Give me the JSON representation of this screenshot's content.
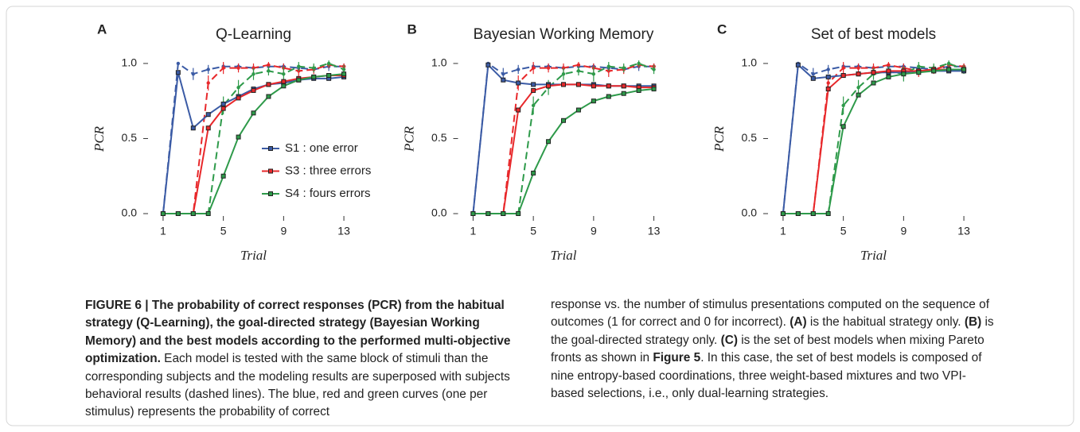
{
  "chart_data": [
    {
      "type": "line",
      "panel_label": "A",
      "title": "Q-Learning",
      "xlabel": "Trial",
      "ylabel": "PCR",
      "x": [
        1,
        2,
        3,
        4,
        5,
        6,
        7,
        8,
        9,
        10,
        11,
        12,
        13
      ],
      "xlim": [
        0,
        14
      ],
      "ylim": [
        0,
        1.1
      ],
      "xticks": [
        1,
        5,
        9,
        13
      ],
      "yticks": [
        {
          "value": 0,
          "label": "0.0"
        },
        0.5,
        {
          "value": 1,
          "label": "1.0"
        }
      ],
      "legend": "lower right",
      "series": [
        {
          "name": "S1 : one error",
          "color": "#3b5ba5",
          "values": [
            0,
            0.94,
            0.57,
            0.66,
            0.73,
            0.78,
            0.83,
            0.86,
            0.87,
            0.89,
            0.9,
            0.9,
            0.91
          ]
        },
        {
          "name": "S3 : three errors",
          "color": "#e8282b",
          "values": [
            0,
            0,
            0,
            0.57,
            0.7,
            0.77,
            0.82,
            0.86,
            0.88,
            0.9,
            0.91,
            0.92,
            0.92
          ]
        },
        {
          "name": "S4 : fours errors",
          "color": "#2e9a4a",
          "values": [
            0,
            0,
            0,
            0,
            0.25,
            0.51,
            0.67,
            0.78,
            0.85,
            0.89,
            0.91,
            0.92,
            0.93
          ]
        },
        {
          "color": "#3b5ba5",
          "dashed": true,
          "values": [
            0,
            1,
            0.93,
            0.96,
            0.98,
            0.98,
            0.97,
            0.98,
            0.98,
            0.97,
            0.96,
            0.98,
            0.98
          ],
          "errors": [
            0,
            0,
            0.04,
            0.03,
            0.02,
            0.02,
            0.02,
            0.02,
            0.02,
            0.02,
            0.02,
            0.03,
            0.02
          ]
        },
        {
          "color": "#e8282b",
          "dashed": true,
          "values": [
            0,
            0,
            0,
            0.87,
            0.97,
            0.97,
            0.97,
            0.99,
            0.97,
            0.95,
            0.96,
            0.99,
            0.98
          ],
          "errors": [
            0,
            0,
            0,
            0.05,
            0.04,
            0.03,
            0.03,
            0.02,
            0.03,
            0.04,
            0.03,
            0.02,
            0.02
          ]
        },
        {
          "color": "#2e9a4a",
          "dashed": true,
          "values": [
            0,
            0,
            0,
            0,
            0.72,
            0.84,
            0.93,
            0.95,
            0.93,
            0.98,
            0.97,
            1,
            0.96
          ],
          "errors": [
            0,
            0,
            0,
            0,
            0.06,
            0.05,
            0.04,
            0.03,
            0.05,
            0.03,
            0.03,
            0.02,
            0.03
          ]
        }
      ]
    },
    {
      "type": "line",
      "panel_label": "B",
      "title": "Bayesian Working Memory",
      "xlabel": "Trial",
      "ylabel": "PCR",
      "x": [
        1,
        2,
        3,
        4,
        5,
        6,
        7,
        8,
        9,
        10,
        11,
        12,
        13
      ],
      "xlim": [
        0,
        14
      ],
      "ylim": [
        0,
        1.1
      ],
      "xticks": [
        1,
        5,
        9,
        13
      ],
      "yticks": [
        {
          "value": 0,
          "label": "0.0"
        },
        0.5,
        {
          "value": 1,
          "label": "1.0"
        }
      ],
      "series": [
        {
          "color": "#3b5ba5",
          "values": [
            0,
            0.99,
            0.89,
            0.87,
            0.86,
            0.86,
            0.86,
            0.86,
            0.86,
            0.85,
            0.85,
            0.85,
            0.85
          ]
        },
        {
          "color": "#e8282b",
          "values": [
            0,
            0,
            0,
            0.69,
            0.82,
            0.85,
            0.86,
            0.86,
            0.85,
            0.85,
            0.85,
            0.84,
            0.84
          ]
        },
        {
          "color": "#2e9a4a",
          "values": [
            0,
            0,
            0,
            0,
            0.27,
            0.48,
            0.62,
            0.69,
            0.75,
            0.78,
            0.8,
            0.82,
            0.83
          ]
        },
        {
          "color": "#3b5ba5",
          "dashed": true,
          "values": [
            0,
            1,
            0.93,
            0.96,
            0.98,
            0.98,
            0.97,
            0.98,
            0.98,
            0.97,
            0.96,
            0.98,
            0.98
          ],
          "errors": [
            0,
            0,
            0.04,
            0.03,
            0.02,
            0.02,
            0.02,
            0.02,
            0.02,
            0.02,
            0.02,
            0.03,
            0.02
          ]
        },
        {
          "color": "#e8282b",
          "dashed": true,
          "values": [
            0,
            0,
            0,
            0.87,
            0.97,
            0.97,
            0.97,
            0.99,
            0.97,
            0.95,
            0.96,
            0.99,
            0.98
          ],
          "errors": [
            0,
            0,
            0,
            0.05,
            0.04,
            0.03,
            0.03,
            0.02,
            0.03,
            0.04,
            0.03,
            0.02,
            0.02
          ]
        },
        {
          "color": "#2e9a4a",
          "dashed": true,
          "values": [
            0,
            0,
            0,
            0,
            0.72,
            0.84,
            0.93,
            0.95,
            0.93,
            0.98,
            0.97,
            1,
            0.96
          ],
          "errors": [
            0,
            0,
            0,
            0,
            0.06,
            0.05,
            0.04,
            0.03,
            0.05,
            0.03,
            0.03,
            0.02,
            0.03
          ]
        }
      ]
    },
    {
      "type": "line",
      "panel_label": "C",
      "title": "Set of best models",
      "xlabel": "Trial",
      "ylabel": "PCR",
      "x": [
        1,
        2,
        3,
        4,
        5,
        6,
        7,
        8,
        9,
        10,
        11,
        12,
        13
      ],
      "xlim": [
        0,
        14
      ],
      "ylim": [
        0,
        1.1
      ],
      "xticks": [
        1,
        5,
        9,
        13
      ],
      "yticks": [
        {
          "value": 0,
          "label": "0.0"
        },
        0.5,
        {
          "value": 1,
          "label": "1.0"
        }
      ],
      "series": [
        {
          "color": "#3b5ba5",
          "values": [
            0,
            0.99,
            0.9,
            0.91,
            0.92,
            0.93,
            0.94,
            0.94,
            0.94,
            0.95,
            0.95,
            0.95,
            0.95
          ]
        },
        {
          "color": "#e8282b",
          "values": [
            0,
            0,
            0,
            0.83,
            0.92,
            0.93,
            0.94,
            0.95,
            0.95,
            0.95,
            0.96,
            0.96,
            0.96
          ]
        },
        {
          "color": "#2e9a4a",
          "values": [
            0,
            0,
            0,
            0,
            0.58,
            0.79,
            0.87,
            0.91,
            0.93,
            0.94,
            0.95,
            0.96,
            0.96
          ]
        },
        {
          "color": "#3b5ba5",
          "dashed": true,
          "values": [
            0,
            1,
            0.93,
            0.96,
            0.98,
            0.98,
            0.97,
            0.98,
            0.98,
            0.97,
            0.96,
            0.98,
            0.98
          ],
          "errors": [
            0,
            0,
            0.04,
            0.03,
            0.02,
            0.02,
            0.02,
            0.02,
            0.02,
            0.02,
            0.02,
            0.03,
            0.02
          ]
        },
        {
          "color": "#e8282b",
          "dashed": true,
          "values": [
            0,
            0,
            0,
            0.87,
            0.97,
            0.97,
            0.97,
            0.99,
            0.97,
            0.95,
            0.96,
            0.99,
            0.98
          ],
          "errors": [
            0,
            0,
            0,
            0.05,
            0.04,
            0.03,
            0.03,
            0.02,
            0.03,
            0.04,
            0.03,
            0.02,
            0.02
          ]
        },
        {
          "color": "#2e9a4a",
          "dashed": true,
          "values": [
            0,
            0,
            0,
            0,
            0.72,
            0.84,
            0.93,
            0.95,
            0.93,
            0.98,
            0.97,
            1,
            0.96
          ],
          "errors": [
            0,
            0,
            0,
            0,
            0.06,
            0.05,
            0.04,
            0.03,
            0.05,
            0.03,
            0.03,
            0.02,
            0.03
          ]
        }
      ]
    }
  ],
  "caption": {
    "left": [
      {
        "text": "FIGURE 6 | The probability of correct responses (PCR) from the habitual strategy (Q-Learning), the goal-directed strategy (Bayesian Working Memory) and the best models according to the performed multi-objective optimization.",
        "bold": true
      },
      {
        "text": " Each model is tested with the same block of stimuli than the corresponding subjects and the modeling results are superposed with subjects behavioral results (dashed lines). The blue, red and green curves (one per stimulus) represents the probability of correct",
        "bold": false
      }
    ],
    "right": [
      {
        "text": "response vs. the number of stimulus presentations computed on the sequence of outcomes (1 for correct and 0 for incorrect).",
        "bold": false
      },
      {
        "text": " (A)",
        "bold": true
      },
      {
        "text": " is the habitual strategy only.",
        "bold": false
      },
      {
        "text": " (B)",
        "bold": true
      },
      {
        "text": " is the goal-directed strategy only.",
        "bold": false
      },
      {
        "text": " (C)",
        "bold": true
      },
      {
        "text": " is the set of best models when mixing Pareto fronts as shown in",
        "bold": false
      },
      {
        "text": " Figure 5",
        "bold": true
      },
      {
        "text": ". In this case, the set of best models is composed of nine entropy-based coordinations, three weight-based mixtures and two VPI-based selections, i.e., only dual-learning strategies.",
        "bold": false
      }
    ]
  }
}
